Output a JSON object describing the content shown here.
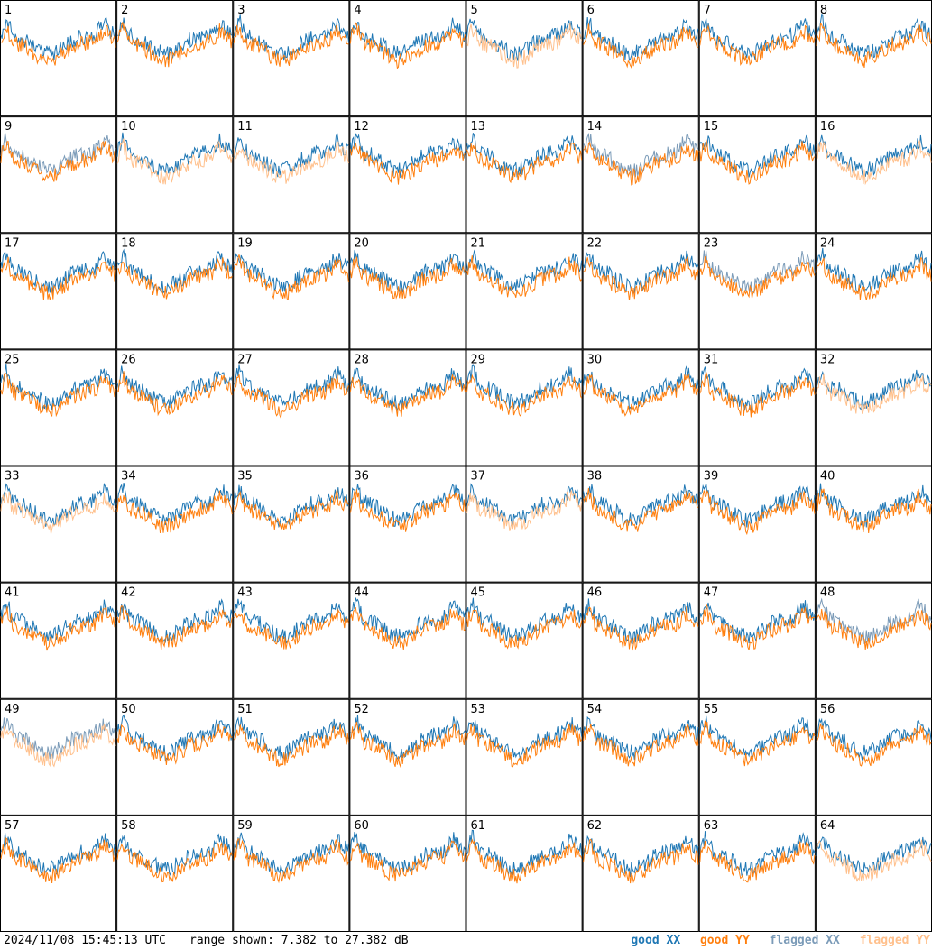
{
  "chart_data": {
    "type": "line",
    "panel_grid": {
      "rows": 8,
      "cols": 8
    },
    "panel_labels": [
      "1",
      "2",
      "3",
      "4",
      "5",
      "6",
      "7",
      "8",
      "9",
      "10",
      "11",
      "12",
      "13",
      "14",
      "15",
      "16",
      "17",
      "18",
      "19",
      "20",
      "21",
      "22",
      "23",
      "24",
      "25",
      "26",
      "27",
      "28",
      "29",
      "30",
      "31",
      "32",
      "33",
      "34",
      "35",
      "36",
      "37",
      "38",
      "39",
      "40",
      "41",
      "42",
      "43",
      "44",
      "45",
      "46",
      "47",
      "48",
      "49",
      "50",
      "51",
      "52",
      "53",
      "54",
      "55",
      "56",
      "57",
      "58",
      "59",
      "60",
      "61",
      "62",
      "63",
      "64"
    ],
    "ylim_db": [
      7.382,
      27.382
    ],
    "grid": false,
    "legend_placement": "bottom-right",
    "legend": [
      {
        "key": "good_xx",
        "label_prefix": "good",
        "label_pol": "XX",
        "color": "#1f77b4"
      },
      {
        "key": "good_yy",
        "label_prefix": "good",
        "label_pol": "YY",
        "color": "#ff7f0e"
      },
      {
        "key": "flagged_xx",
        "label_prefix": "flagged",
        "label_pol": "XX",
        "color": "#7b9bb8"
      },
      {
        "key": "flagged_yy",
        "label_prefix": "flagged",
        "label_pol": "YY",
        "color": "#ffc08c"
      }
    ],
    "series_status": {
      "1": {
        "xx": "good",
        "yy": "good"
      },
      "2": {
        "xx": "good",
        "yy": "good"
      },
      "3": {
        "xx": "good",
        "yy": "good"
      },
      "4": {
        "xx": "good",
        "yy": "good"
      },
      "5": {
        "xx": "good",
        "yy": "flagged"
      },
      "6": {
        "xx": "good",
        "yy": "good"
      },
      "7": {
        "xx": "good",
        "yy": "good"
      },
      "8": {
        "xx": "good",
        "yy": "good"
      },
      "9": {
        "xx": "flagged",
        "yy": "good"
      },
      "10": {
        "xx": "good",
        "yy": "flagged"
      },
      "11": {
        "xx": "good",
        "yy": "flagged"
      },
      "12": {
        "xx": "good",
        "yy": "good"
      },
      "13": {
        "xx": "good",
        "yy": "good"
      },
      "14": {
        "xx": "flagged",
        "yy": "good"
      },
      "15": {
        "xx": "good",
        "yy": "good"
      },
      "16": {
        "xx": "good",
        "yy": "flagged"
      },
      "17": {
        "xx": "good",
        "yy": "good"
      },
      "18": {
        "xx": "good",
        "yy": "good"
      },
      "19": {
        "xx": "good",
        "yy": "good"
      },
      "20": {
        "xx": "good",
        "yy": "good"
      },
      "21": {
        "xx": "good",
        "yy": "good"
      },
      "22": {
        "xx": "good",
        "yy": "good"
      },
      "23": {
        "xx": "flagged",
        "yy": "good"
      },
      "24": {
        "xx": "good",
        "yy": "good"
      },
      "25": {
        "xx": "good",
        "yy": "good"
      },
      "26": {
        "xx": "good",
        "yy": "good"
      },
      "27": {
        "xx": "good",
        "yy": "good"
      },
      "28": {
        "xx": "good",
        "yy": "good"
      },
      "29": {
        "xx": "good",
        "yy": "good"
      },
      "30": {
        "xx": "good",
        "yy": "good"
      },
      "31": {
        "xx": "good",
        "yy": "good"
      },
      "32": {
        "xx": "good",
        "yy": "flagged"
      },
      "33": {
        "xx": "good",
        "yy": "flagged"
      },
      "34": {
        "xx": "good",
        "yy": "good"
      },
      "35": {
        "xx": "good",
        "yy": "good"
      },
      "36": {
        "xx": "good",
        "yy": "good"
      },
      "37": {
        "xx": "good",
        "yy": "flagged"
      },
      "38": {
        "xx": "good",
        "yy": "good"
      },
      "39": {
        "xx": "good",
        "yy": "good"
      },
      "40": {
        "xx": "good",
        "yy": "good"
      },
      "41": {
        "xx": "good",
        "yy": "good"
      },
      "42": {
        "xx": "good",
        "yy": "good"
      },
      "43": {
        "xx": "good",
        "yy": "good"
      },
      "44": {
        "xx": "good",
        "yy": "good"
      },
      "45": {
        "xx": "good",
        "yy": "good"
      },
      "46": {
        "xx": "good",
        "yy": "good"
      },
      "47": {
        "xx": "good",
        "yy": "good"
      },
      "48": {
        "xx": "flagged",
        "yy": "good"
      },
      "49": {
        "xx": "flagged",
        "yy": "flagged"
      },
      "50": {
        "xx": "good",
        "yy": "good"
      },
      "51": {
        "xx": "good",
        "yy": "good"
      },
      "52": {
        "xx": "good",
        "yy": "good"
      },
      "53": {
        "xx": "good",
        "yy": "good"
      },
      "54": {
        "xx": "good",
        "yy": "good"
      },
      "55": {
        "xx": "good",
        "yy": "good"
      },
      "56": {
        "xx": "good",
        "yy": "good"
      },
      "57": {
        "xx": "good",
        "yy": "good"
      },
      "58": {
        "xx": "good",
        "yy": "good"
      },
      "59": {
        "xx": "good",
        "yy": "good"
      },
      "60": {
        "xx": "good",
        "yy": "good"
      },
      "61": {
        "xx": "good",
        "yy": "good"
      },
      "62": {
        "xx": "good",
        "yy": "good"
      },
      "63": {
        "xx": "good",
        "yy": "good"
      },
      "64": {
        "xx": "good",
        "yy": "flagged"
      }
    }
  },
  "footer": {
    "timestamp": "2024/11/08 15:45:13 UTC",
    "range_text": "range shown: 7.382 to 27.382 dB"
  }
}
